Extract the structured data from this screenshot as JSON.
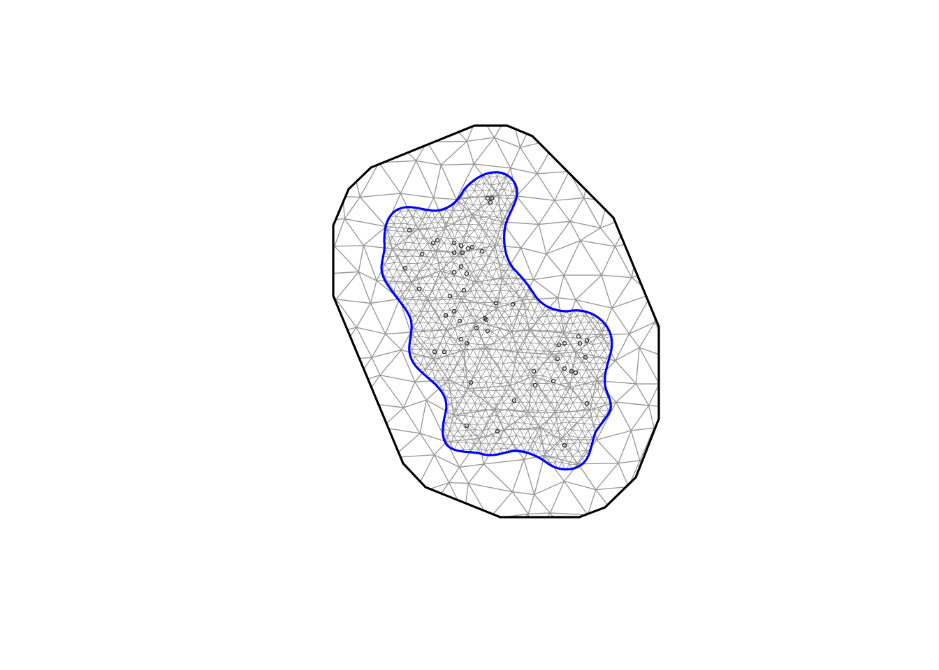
{
  "figure": {
    "description_visible_text": "",
    "mesh_style": {
      "outer_boundary_color": "#000000",
      "inner_boundary_color": "#0000ff",
      "mesh_edge_color": "#999999",
      "observation_point_color": "#333333",
      "background": "#ffffff"
    },
    "elements": [
      {
        "name": "outer-boundary",
        "kind": "polygon"
      },
      {
        "name": "inner-boundary",
        "kind": "closed-curve"
      },
      {
        "name": "triangulation-mesh",
        "kind": "mesh"
      },
      {
        "name": "observation-points",
        "kind": "points"
      }
    ]
  }
}
